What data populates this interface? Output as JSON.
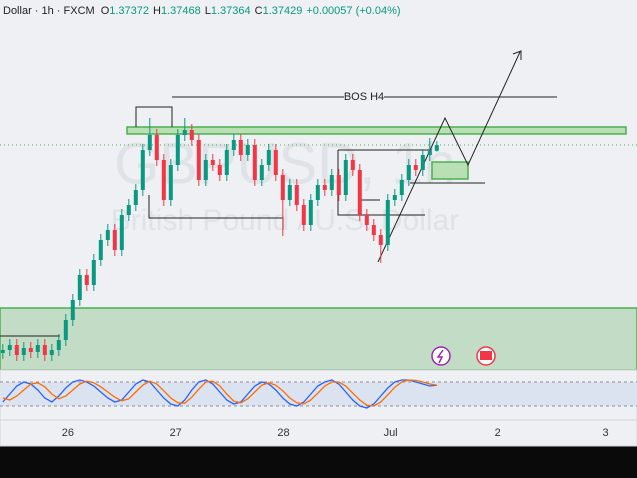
{
  "header": {
    "symbol": "Dollar · 1h · FXCM",
    "ohlc_labels": [
      "O",
      "H",
      "L",
      "C"
    ],
    "change": "+0.00057 (+0.04%)"
  },
  "watermark": {
    "title": "GBPUSD, 1h",
    "subtitle": "British Pound / U.S. Dollar"
  },
  "annotation": "BOS H4",
  "chart_data": {
    "type": "candlestick",
    "up_color": "#089981",
    "down_color": "#f23645",
    "ylim": [
      1.3518,
      1.3888
    ],
    "xlim": [
      -0.4,
      90.6
    ],
    "xticks": [
      {
        "value": 9.3,
        "label": "26"
      },
      {
        "value": 24.7,
        "label": "27"
      },
      {
        "value": 40.1,
        "label": "28"
      },
      {
        "value": 55.4,
        "label": "Jul"
      },
      {
        "value": 70.7,
        "label": "2"
      },
      {
        "value": 86.1,
        "label": "3"
      }
    ],
    "candles": [
      [
        1.3535,
        1.3544,
        1.3529,
        1.3538
      ],
      [
        1.3538,
        1.3549,
        1.3532,
        1.3543
      ],
      [
        1.3543,
        1.3549,
        1.3527,
        1.3533
      ],
      [
        1.3533,
        1.3546,
        1.3527,
        1.354
      ],
      [
        1.354,
        1.3546,
        1.353,
        1.3536
      ],
      [
        1.3536,
        1.3549,
        1.353,
        1.3543
      ],
      [
        1.3543,
        1.3549,
        1.3527,
        1.3533
      ],
      [
        1.3533,
        1.3544,
        1.3527,
        1.3538
      ],
      [
        1.3538,
        1.3554,
        1.3532,
        1.3548
      ],
      [
        1.3548,
        1.3574,
        1.3542,
        1.3568
      ],
      [
        1.3568,
        1.3594,
        1.3562,
        1.3588
      ],
      [
        1.3588,
        1.3619,
        1.3582,
        1.3613
      ],
      [
        1.3613,
        1.3619,
        1.3597,
        1.3603
      ],
      [
        1.3603,
        1.3634,
        1.3597,
        1.3628
      ],
      [
        1.3628,
        1.3654,
        1.3622,
        1.3648
      ],
      [
        1.3648,
        1.3664,
        1.3642,
        1.3658
      ],
      [
        1.3658,
        1.3664,
        1.3632,
        1.3638
      ],
      [
        1.3638,
        1.3679,
        1.3632,
        1.3673
      ],
      [
        1.3673,
        1.3689,
        1.3667,
        1.3683
      ],
      [
        1.3683,
        1.3704,
        1.3677,
        1.3698
      ],
      [
        1.3698,
        1.3744,
        1.3692,
        1.3738
      ],
      [
        1.3738,
        1.377,
        1.3732,
        1.3753
      ],
      [
        1.3753,
        1.3759,
        1.3722,
        1.3728
      ],
      [
        1.3728,
        1.3734,
        1.3682,
        1.3688
      ],
      [
        1.3688,
        1.3729,
        1.3682,
        1.3723
      ],
      [
        1.3723,
        1.3759,
        1.3717,
        1.3753
      ],
      [
        1.3753,
        1.377,
        1.3747,
        1.3758
      ],
      [
        1.3758,
        1.3764,
        1.3742,
        1.3748
      ],
      [
        1.3748,
        1.3754,
        1.3702,
        1.3708
      ],
      [
        1.3708,
        1.3734,
        1.3702,
        1.3728
      ],
      [
        1.3728,
        1.3734,
        1.3717,
        1.3723
      ],
      [
        1.3723,
        1.3729,
        1.3707,
        1.3713
      ],
      [
        1.3713,
        1.3744,
        1.3707,
        1.3738
      ],
      [
        1.3738,
        1.3754,
        1.3732,
        1.3748
      ],
      [
        1.3748,
        1.3754,
        1.3727,
        1.3733
      ],
      [
        1.3733,
        1.3749,
        1.3727,
        1.3743
      ],
      [
        1.3743,
        1.3749,
        1.3702,
        1.3708
      ],
      [
        1.3708,
        1.3729,
        1.3702,
        1.3723
      ],
      [
        1.3723,
        1.3744,
        1.3717,
        1.3738
      ],
      [
        1.3738,
        1.3744,
        1.3707,
        1.3713
      ],
      [
        1.3713,
        1.3719,
        1.3652,
        1.3688
      ],
      [
        1.3688,
        1.3709,
        1.3682,
        1.3703
      ],
      [
        1.3703,
        1.3709,
        1.3677,
        1.3683
      ],
      [
        1.3683,
        1.3689,
        1.3657,
        1.3663
      ],
      [
        1.3663,
        1.3694,
        1.3657,
        1.3688
      ],
      [
        1.3688,
        1.3709,
        1.3682,
        1.3703
      ],
      [
        1.3703,
        1.3709,
        1.3692,
        1.3698
      ],
      [
        1.3698,
        1.3719,
        1.3692,
        1.3713
      ],
      [
        1.3713,
        1.3719,
        1.3687,
        1.3693
      ],
      [
        1.3693,
        1.3734,
        1.3687,
        1.3728
      ],
      [
        1.3728,
        1.3734,
        1.3712,
        1.3718
      ],
      [
        1.3718,
        1.3724,
        1.3667,
        1.3673
      ],
      [
        1.3673,
        1.3679,
        1.3657,
        1.3663
      ],
      [
        1.3663,
        1.3669,
        1.3647,
        1.3653
      ],
      [
        1.3653,
        1.3659,
        1.3625,
        1.3643
      ],
      [
        1.3643,
        1.3694,
        1.3637,
        1.3688
      ],
      [
        1.3688,
        1.3699,
        1.3682,
        1.3693
      ],
      [
        1.3693,
        1.3714,
        1.3687,
        1.3708
      ],
      [
        1.3708,
        1.3729,
        1.3702,
        1.3723
      ],
      [
        1.3723,
        1.3729,
        1.3712,
        1.3718
      ],
      [
        1.3718,
        1.3739,
        1.3712,
        1.3733
      ],
      [
        1.3733,
        1.375,
        1.3727,
        1.3737
      ],
      [
        1.37372,
        1.37468,
        1.37364,
        1.37429
      ]
    ],
    "stoch": {
      "ylim": [
        0,
        100
      ],
      "levels": [
        80,
        20
      ],
      "k_color": "#2962ff",
      "d_color": "#ff6d00",
      "k": [
        30,
        50,
        70,
        80,
        75,
        60,
        40,
        30,
        45,
        65,
        80,
        85,
        80,
        70,
        55,
        40,
        30,
        35,
        55,
        75,
        85,
        80,
        60,
        40,
        25,
        20,
        35,
        60,
        80,
        85,
        75,
        55,
        35,
        25,
        30,
        50,
        70,
        80,
        75,
        60,
        40,
        25,
        20,
        30,
        50,
        70,
        80,
        85,
        75,
        55,
        35,
        20,
        15,
        25,
        45,
        65,
        80,
        85,
        85,
        80,
        75,
        70,
        72
      ],
      "d": [
        40,
        35,
        45,
        60,
        75,
        78,
        68,
        50,
        38,
        45,
        60,
        75,
        82,
        78,
        68,
        55,
        42,
        33,
        38,
        55,
        72,
        82,
        75,
        58,
        40,
        28,
        27,
        42,
        62,
        80,
        82,
        70,
        50,
        32,
        28,
        38,
        55,
        72,
        78,
        72,
        58,
        40,
        28,
        25,
        35,
        52,
        70,
        80,
        80,
        70,
        52,
        35,
        22,
        20,
        30,
        48,
        67,
        80,
        85,
        84,
        80,
        75,
        72
      ]
    }
  }
}
